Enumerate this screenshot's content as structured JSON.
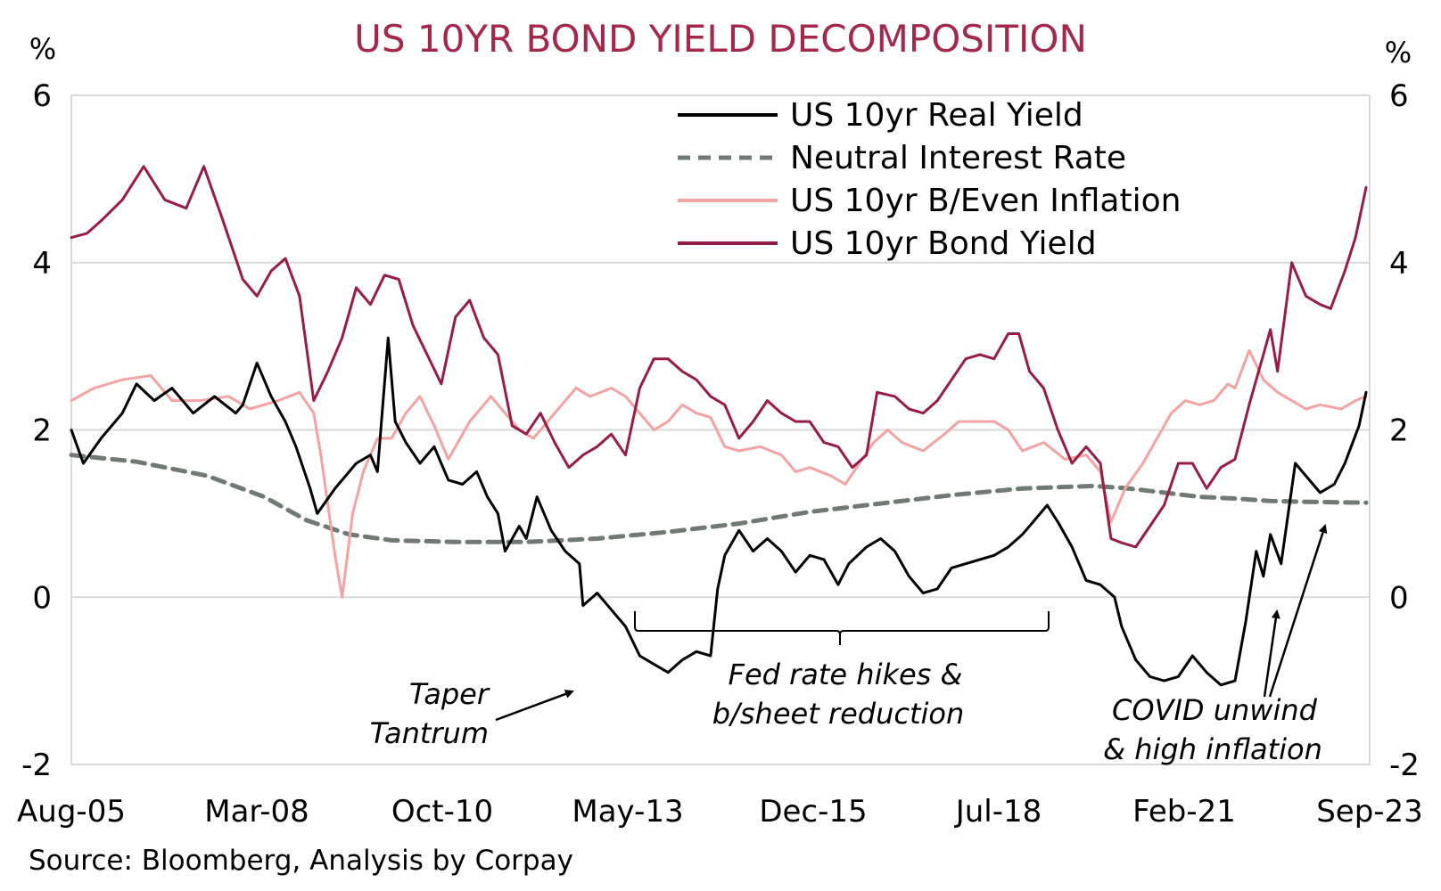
{
  "chart_data": {
    "type": "line",
    "title": "US 10YR BOND YIELD DECOMPOSITION",
    "left_unit": "%",
    "right_unit": "%",
    "source": "Source: Bloomberg, Analysis by Corpay",
    "x_ticks": [
      "Aug-05",
      "Mar-08",
      "Oct-10",
      "May-13",
      "Dec-15",
      "Jul-18",
      "Feb-21",
      "Sep-23"
    ],
    "y_ticks": [
      "6",
      "4",
      "2",
      "0",
      "-2"
    ],
    "xlim": [
      2005.58,
      2023.9
    ],
    "ylim": [
      -2,
      6
    ],
    "grid": "horizontal",
    "legend_position": "top-right",
    "colors": {
      "title": "#a3284a",
      "real_yield": "#000000",
      "neutral": "#6f7a72",
      "breakeven": "#f4a3a3",
      "bond_yield": "#981d44",
      "grid": "#d9d9d9"
    },
    "series": [
      {
        "name": "US 10yr Real Yield",
        "key": "real_yield",
        "style": "solid",
        "width": 3,
        "points": [
          [
            2005.58,
            2.0
          ],
          [
            2005.75,
            1.6
          ],
          [
            2006.0,
            1.9
          ],
          [
            2006.3,
            2.2
          ],
          [
            2006.5,
            2.55
          ],
          [
            2006.75,
            2.35
          ],
          [
            2007.0,
            2.5
          ],
          [
            2007.3,
            2.2
          ],
          [
            2007.6,
            2.4
          ],
          [
            2007.9,
            2.2
          ],
          [
            2008.0,
            2.3
          ],
          [
            2008.2,
            2.8
          ],
          [
            2008.4,
            2.4
          ],
          [
            2008.6,
            2.1
          ],
          [
            2008.75,
            1.8
          ],
          [
            2008.95,
            1.3
          ],
          [
            2009.05,
            1.0
          ],
          [
            2009.3,
            1.3
          ],
          [
            2009.6,
            1.6
          ],
          [
            2009.8,
            1.7
          ],
          [
            2009.9,
            1.5
          ],
          [
            2010.05,
            3.1
          ],
          [
            2010.15,
            2.1
          ],
          [
            2010.3,
            1.85
          ],
          [
            2010.5,
            1.6
          ],
          [
            2010.7,
            1.8
          ],
          [
            2010.9,
            1.4
          ],
          [
            2011.1,
            1.35
          ],
          [
            2011.3,
            1.5
          ],
          [
            2011.45,
            1.2
          ],
          [
            2011.6,
            1.0
          ],
          [
            2011.7,
            0.55
          ],
          [
            2011.9,
            0.85
          ],
          [
            2012.0,
            0.7
          ],
          [
            2012.15,
            1.2
          ],
          [
            2012.35,
            0.8
          ],
          [
            2012.55,
            0.55
          ],
          [
            2012.75,
            0.4
          ],
          [
            2012.8,
            -0.1
          ],
          [
            2013.0,
            0.05
          ],
          [
            2013.2,
            -0.15
          ],
          [
            2013.4,
            -0.35
          ],
          [
            2013.6,
            -0.7
          ],
          [
            2013.8,
            -0.8
          ],
          [
            2014.0,
            -0.9
          ],
          [
            2014.2,
            -0.75
          ],
          [
            2014.4,
            -0.65
          ],
          [
            2014.6,
            -0.7
          ],
          [
            2014.7,
            0.1
          ],
          [
            2014.8,
            0.5
          ],
          [
            2015.0,
            0.8
          ],
          [
            2015.2,
            0.55
          ],
          [
            2015.4,
            0.7
          ],
          [
            2015.6,
            0.55
          ],
          [
            2015.8,
            0.3
          ],
          [
            2016.0,
            0.5
          ],
          [
            2016.2,
            0.45
          ],
          [
            2016.4,
            0.15
          ],
          [
            2016.55,
            0.4
          ],
          [
            2016.8,
            0.6
          ],
          [
            2017.0,
            0.7
          ],
          [
            2017.2,
            0.55
          ],
          [
            2017.4,
            0.25
          ],
          [
            2017.6,
            0.05
          ],
          [
            2017.8,
            0.1
          ],
          [
            2018.0,
            0.35
          ],
          [
            2018.2,
            0.4
          ],
          [
            2018.4,
            0.45
          ],
          [
            2018.6,
            0.5
          ],
          [
            2018.8,
            0.6
          ],
          [
            2019.0,
            0.75
          ],
          [
            2019.2,
            0.95
          ],
          [
            2019.35,
            1.1
          ],
          [
            2019.5,
            0.9
          ],
          [
            2019.7,
            0.6
          ],
          [
            2019.9,
            0.2
          ],
          [
            2020.1,
            0.15
          ],
          [
            2020.3,
            0.0
          ],
          [
            2020.4,
            -0.35
          ],
          [
            2020.6,
            -0.75
          ],
          [
            2020.8,
            -0.95
          ],
          [
            2021.0,
            -1.0
          ],
          [
            2021.2,
            -0.95
          ],
          [
            2021.4,
            -0.7
          ],
          [
            2021.6,
            -0.9
          ],
          [
            2021.8,
            -1.05
          ],
          [
            2022.0,
            -1.0
          ],
          [
            2022.15,
            -0.3
          ],
          [
            2022.3,
            0.55
          ],
          [
            2022.4,
            0.25
          ],
          [
            2022.5,
            0.75
          ],
          [
            2022.65,
            0.4
          ],
          [
            2022.85,
            1.6
          ],
          [
            2023.0,
            1.45
          ],
          [
            2023.2,
            1.25
          ],
          [
            2023.4,
            1.35
          ],
          [
            2023.55,
            1.6
          ],
          [
            2023.75,
            2.05
          ],
          [
            2023.85,
            2.45
          ]
        ]
      },
      {
        "name": "Neutral Interest Rate",
        "key": "neutral",
        "style": "dashed",
        "width": 5,
        "points": [
          [
            2005.58,
            1.7
          ],
          [
            2006.5,
            1.62
          ],
          [
            2007.5,
            1.45
          ],
          [
            2008.3,
            1.2
          ],
          [
            2008.9,
            0.92
          ],
          [
            2009.5,
            0.75
          ],
          [
            2010.1,
            0.68
          ],
          [
            2011.0,
            0.66
          ],
          [
            2012.0,
            0.66
          ],
          [
            2013.0,
            0.7
          ],
          [
            2014.0,
            0.78
          ],
          [
            2015.0,
            0.88
          ],
          [
            2016.0,
            1.02
          ],
          [
            2017.0,
            1.12
          ],
          [
            2018.0,
            1.22
          ],
          [
            2019.0,
            1.3
          ],
          [
            2020.0,
            1.33
          ],
          [
            2020.5,
            1.3
          ],
          [
            2021.0,
            1.25
          ],
          [
            2021.5,
            1.2
          ],
          [
            2022.0,
            1.18
          ],
          [
            2022.5,
            1.15
          ],
          [
            2023.0,
            1.14
          ],
          [
            2023.85,
            1.13
          ]
        ]
      },
      {
        "name": "US 10yr B/Even Inflation",
        "key": "breakeven",
        "style": "solid",
        "width": 3,
        "points": [
          [
            2005.58,
            2.35
          ],
          [
            2005.9,
            2.5
          ],
          [
            2006.3,
            2.6
          ],
          [
            2006.7,
            2.65
          ],
          [
            2007.0,
            2.35
          ],
          [
            2007.4,
            2.35
          ],
          [
            2007.8,
            2.4
          ],
          [
            2008.1,
            2.25
          ],
          [
            2008.5,
            2.35
          ],
          [
            2008.8,
            2.45
          ],
          [
            2009.0,
            2.2
          ],
          [
            2009.1,
            1.7
          ],
          [
            2009.3,
            0.5
          ],
          [
            2009.4,
            0.0
          ],
          [
            2009.55,
            1.0
          ],
          [
            2009.7,
            1.5
          ],
          [
            2009.9,
            1.9
          ],
          [
            2010.1,
            1.9
          ],
          [
            2010.3,
            2.2
          ],
          [
            2010.5,
            2.4
          ],
          [
            2010.7,
            2.05
          ],
          [
            2010.9,
            1.65
          ],
          [
            2011.2,
            2.1
          ],
          [
            2011.5,
            2.4
          ],
          [
            2011.7,
            2.2
          ],
          [
            2011.9,
            2.0
          ],
          [
            2012.1,
            1.9
          ],
          [
            2012.3,
            2.1
          ],
          [
            2012.5,
            2.3
          ],
          [
            2012.7,
            2.5
          ],
          [
            2012.9,
            2.4
          ],
          [
            2013.2,
            2.5
          ],
          [
            2013.4,
            2.4
          ],
          [
            2013.6,
            2.2
          ],
          [
            2013.8,
            2.0
          ],
          [
            2014.0,
            2.1
          ],
          [
            2014.2,
            2.3
          ],
          [
            2014.4,
            2.2
          ],
          [
            2014.6,
            2.15
          ],
          [
            2014.8,
            1.8
          ],
          [
            2015.0,
            1.75
          ],
          [
            2015.3,
            1.8
          ],
          [
            2015.6,
            1.7
          ],
          [
            2015.8,
            1.5
          ],
          [
            2016.0,
            1.55
          ],
          [
            2016.3,
            1.45
          ],
          [
            2016.5,
            1.35
          ],
          [
            2016.7,
            1.6
          ],
          [
            2016.9,
            1.85
          ],
          [
            2017.1,
            2.0
          ],
          [
            2017.3,
            1.85
          ],
          [
            2017.6,
            1.75
          ],
          [
            2017.9,
            1.95
          ],
          [
            2018.1,
            2.1
          ],
          [
            2018.3,
            2.1
          ],
          [
            2018.6,
            2.1
          ],
          [
            2018.8,
            2.0
          ],
          [
            2019.0,
            1.75
          ],
          [
            2019.3,
            1.85
          ],
          [
            2019.6,
            1.65
          ],
          [
            2019.9,
            1.7
          ],
          [
            2020.1,
            1.5
          ],
          [
            2020.25,
            0.9
          ],
          [
            2020.45,
            1.3
          ],
          [
            2020.7,
            1.6
          ],
          [
            2020.9,
            1.9
          ],
          [
            2021.1,
            2.2
          ],
          [
            2021.3,
            2.35
          ],
          [
            2021.5,
            2.3
          ],
          [
            2021.7,
            2.35
          ],
          [
            2021.9,
            2.55
          ],
          [
            2022.0,
            2.5
          ],
          [
            2022.2,
            2.95
          ],
          [
            2022.4,
            2.6
          ],
          [
            2022.6,
            2.45
          ],
          [
            2022.8,
            2.35
          ],
          [
            2023.0,
            2.25
          ],
          [
            2023.2,
            2.3
          ],
          [
            2023.5,
            2.25
          ],
          [
            2023.7,
            2.35
          ],
          [
            2023.85,
            2.4
          ]
        ]
      },
      {
        "name": "US 10yr Bond Yield",
        "key": "bond_yield",
        "style": "solid",
        "width": 3,
        "points": [
          [
            2005.58,
            4.3
          ],
          [
            2005.8,
            4.35
          ],
          [
            2006.0,
            4.5
          ],
          [
            2006.3,
            4.75
          ],
          [
            2006.6,
            5.15
          ],
          [
            2006.9,
            4.75
          ],
          [
            2007.2,
            4.65
          ],
          [
            2007.45,
            5.15
          ],
          [
            2007.7,
            4.55
          ],
          [
            2008.0,
            3.8
          ],
          [
            2008.2,
            3.6
          ],
          [
            2008.4,
            3.9
          ],
          [
            2008.6,
            4.05
          ],
          [
            2008.8,
            3.6
          ],
          [
            2009.0,
            2.35
          ],
          [
            2009.2,
            2.7
          ],
          [
            2009.4,
            3.1
          ],
          [
            2009.6,
            3.7
          ],
          [
            2009.8,
            3.5
          ],
          [
            2010.0,
            3.85
          ],
          [
            2010.2,
            3.8
          ],
          [
            2010.4,
            3.25
          ],
          [
            2010.6,
            2.9
          ],
          [
            2010.8,
            2.55
          ],
          [
            2011.0,
            3.35
          ],
          [
            2011.2,
            3.55
          ],
          [
            2011.4,
            3.1
          ],
          [
            2011.6,
            2.9
          ],
          [
            2011.8,
            2.05
          ],
          [
            2012.0,
            1.95
          ],
          [
            2012.2,
            2.2
          ],
          [
            2012.4,
            1.85
          ],
          [
            2012.6,
            1.55
          ],
          [
            2012.8,
            1.7
          ],
          [
            2013.0,
            1.8
          ],
          [
            2013.2,
            1.95
          ],
          [
            2013.4,
            1.7
          ],
          [
            2013.6,
            2.5
          ],
          [
            2013.8,
            2.85
          ],
          [
            2014.0,
            2.85
          ],
          [
            2014.2,
            2.7
          ],
          [
            2014.4,
            2.6
          ],
          [
            2014.6,
            2.4
          ],
          [
            2014.8,
            2.3
          ],
          [
            2015.0,
            1.9
          ],
          [
            2015.2,
            2.1
          ],
          [
            2015.4,
            2.35
          ],
          [
            2015.6,
            2.2
          ],
          [
            2015.8,
            2.1
          ],
          [
            2016.0,
            2.1
          ],
          [
            2016.2,
            1.85
          ],
          [
            2016.4,
            1.8
          ],
          [
            2016.6,
            1.55
          ],
          [
            2016.8,
            1.7
          ],
          [
            2016.95,
            2.45
          ],
          [
            2017.2,
            2.4
          ],
          [
            2017.4,
            2.25
          ],
          [
            2017.6,
            2.2
          ],
          [
            2017.8,
            2.35
          ],
          [
            2018.0,
            2.6
          ],
          [
            2018.2,
            2.85
          ],
          [
            2018.4,
            2.9
          ],
          [
            2018.6,
            2.85
          ],
          [
            2018.8,
            3.15
          ],
          [
            2018.95,
            3.15
          ],
          [
            2019.1,
            2.7
          ],
          [
            2019.3,
            2.5
          ],
          [
            2019.5,
            2.0
          ],
          [
            2019.7,
            1.6
          ],
          [
            2019.9,
            1.8
          ],
          [
            2020.1,
            1.6
          ],
          [
            2020.25,
            0.7
          ],
          [
            2020.4,
            0.65
          ],
          [
            2020.6,
            0.6
          ],
          [
            2020.8,
            0.85
          ],
          [
            2021.0,
            1.1
          ],
          [
            2021.2,
            1.6
          ],
          [
            2021.4,
            1.6
          ],
          [
            2021.6,
            1.3
          ],
          [
            2021.8,
            1.55
          ],
          [
            2022.0,
            1.65
          ],
          [
            2022.2,
            2.3
          ],
          [
            2022.4,
            2.9
          ],
          [
            2022.5,
            3.2
          ],
          [
            2022.6,
            2.7
          ],
          [
            2022.8,
            4.0
          ],
          [
            2023.0,
            3.6
          ],
          [
            2023.2,
            3.5
          ],
          [
            2023.35,
            3.45
          ],
          [
            2023.55,
            3.9
          ],
          [
            2023.7,
            4.3
          ],
          [
            2023.85,
            4.9
          ]
        ]
      }
    ],
    "annotations": {
      "taper_line1": "Taper",
      "taper_line2": "Tantrum",
      "fed_line1": "Fed rate hikes &",
      "fed_line2": "b/sheet reduction",
      "covid_line1": "COVID unwind",
      "covid_line2": "& high inflation"
    }
  }
}
